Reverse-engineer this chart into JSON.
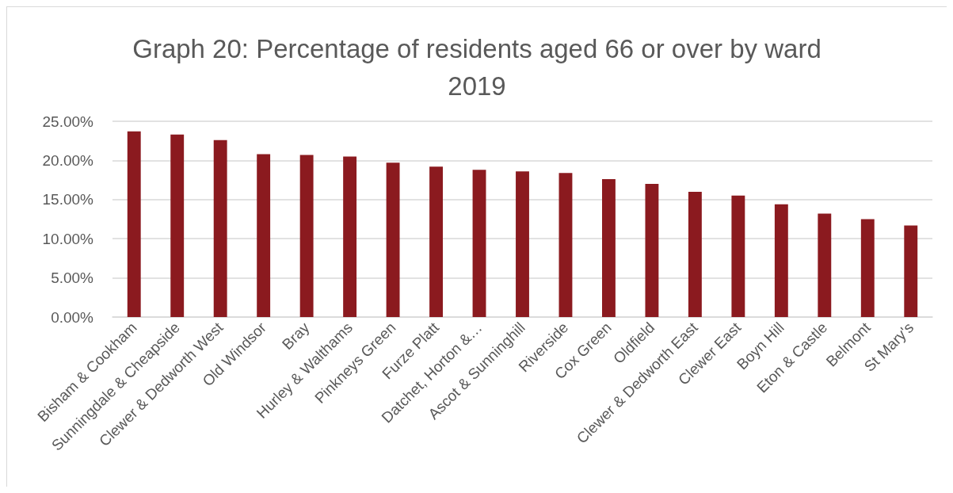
{
  "chart_data": {
    "type": "bar",
    "title": "Graph 20: Percentage of residents aged 66 or over by ward 2019",
    "categories": [
      "Bisham & Cookham",
      "Sunningdale & Cheapside",
      "Clewer & Dedworth West",
      "Old Windsor",
      "Bray",
      "Hurley & Walthams",
      "Pinkneys Green",
      "Furze Platt",
      "Datchet, Horton &…",
      "Ascot & Sunninghill",
      "Riverside",
      "Cox Green",
      "Oldfield",
      "Clewer & Dedworth East",
      "Clewer East",
      "Boyn Hill",
      "Eton & Castle",
      "Belmont",
      "St Mary's"
    ],
    "values": [
      23.7,
      23.3,
      22.6,
      20.8,
      20.7,
      20.5,
      19.7,
      19.2,
      18.8,
      18.6,
      18.4,
      17.6,
      17.0,
      16.0,
      15.5,
      14.4,
      13.2,
      12.5,
      11.7
    ],
    "color": "#8b1a1f",
    "ylim": [
      0,
      25
    ],
    "yticks": [
      {
        "value": 0,
        "label": "0.00%"
      },
      {
        "value": 5,
        "label": "5.00%"
      },
      {
        "value": 10,
        "label": "10.00%"
      },
      {
        "value": 15,
        "label": "15.00%"
      },
      {
        "value": 20,
        "label": "20.00%"
      },
      {
        "value": 25,
        "label": "25.00%"
      }
    ],
    "grid": "y"
  }
}
